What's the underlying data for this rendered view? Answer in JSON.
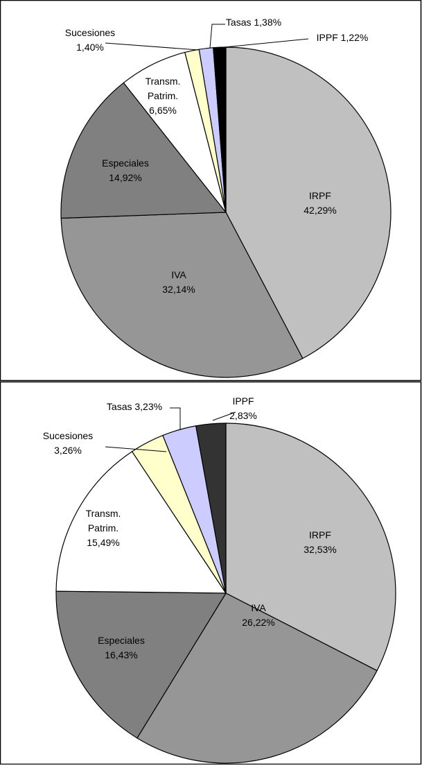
{
  "chart_data": [
    {
      "type": "pie",
      "title": "",
      "slices": [
        {
          "label": "IRPF",
          "value": 42.29,
          "value_label": "42,29%",
          "color": "#c0c0c0"
        },
        {
          "label": "IVA",
          "value": 32.14,
          "value_label": "32,14%",
          "color": "#969696"
        },
        {
          "label": "Especiales",
          "value": 14.92,
          "value_label": "14,92%",
          "color": "#808080"
        },
        {
          "label": "Transm.\nPatrim.",
          "value": 6.65,
          "value_label": "6,65%",
          "color": "#ffffff"
        },
        {
          "label": "Sucesiones",
          "value": 1.4,
          "value_label": "1,40%",
          "color": "#ffffcc"
        },
        {
          "label": "Tasas",
          "value": 1.38,
          "value_label": "1,38%",
          "color": "#ccccff"
        },
        {
          "label": "IPPF",
          "value": 1.22,
          "value_label": "1,22%",
          "color": "#000000"
        }
      ]
    },
    {
      "type": "pie",
      "title": "",
      "slices": [
        {
          "label": "IRPF",
          "value": 32.53,
          "value_label": "32,53%",
          "color": "#c0c0c0"
        },
        {
          "label": "IVA",
          "value": 26.22,
          "value_label": "26,22%",
          "color": "#969696"
        },
        {
          "label": "Especiales",
          "value": 16.43,
          "value_label": "16,43%",
          "color": "#808080"
        },
        {
          "label": "Transm.\nPatrim.",
          "value": 15.49,
          "value_label": "15,49%",
          "color": "#ffffff"
        },
        {
          "label": "Sucesiones",
          "value": 3.26,
          "value_label": "3,26%",
          "color": "#ffffcc"
        },
        {
          "label": "Tasas",
          "value": 3.23,
          "value_label": "3,23%",
          "color": "#ccccff"
        },
        {
          "label": "IPPF",
          "value": 2.83,
          "value_label": "2,83%",
          "color": "#333333"
        }
      ]
    }
  ]
}
